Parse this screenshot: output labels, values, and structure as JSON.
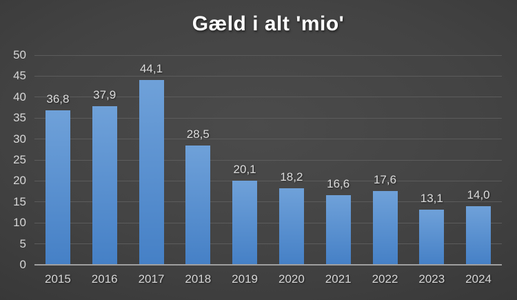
{
  "chart_data": {
    "type": "bar",
    "title": "Gæld i alt 'mio'",
    "categories": [
      "2015",
      "2016",
      "2017",
      "2018",
      "2019",
      "2020",
      "2021",
      "2022",
      "2023",
      "2024"
    ],
    "values": [
      36.8,
      37.9,
      44.1,
      28.5,
      20.1,
      18.2,
      16.6,
      17.6,
      13.1,
      14.0
    ],
    "value_labels": [
      "36,8",
      "37,9",
      "44,1",
      "28,5",
      "20,1",
      "18,2",
      "16,6",
      "17,6",
      "13,1",
      "14,0"
    ],
    "xlabel": "",
    "ylabel": "",
    "ylim": [
      0,
      50
    ],
    "ytick_step": 5,
    "ytick_labels": [
      "50",
      "45",
      "40",
      "35",
      "30",
      "25",
      "20",
      "15",
      "10",
      "5",
      "0"
    ],
    "grid": true,
    "legend": "none",
    "decimal_separator": ","
  },
  "colors": {
    "bar_gradient_top": "#6fa1d9",
    "bar_gradient_bottom": "#4580c6",
    "gridline": "#5c5c5c",
    "axis_line": "#a0a0a0",
    "tick_label_text": "#d6d6d6",
    "value_label_text": "#dcdcdc",
    "title_text": "#ffffff",
    "background_center": "#4b4b4b",
    "background_edge": "#222222"
  }
}
